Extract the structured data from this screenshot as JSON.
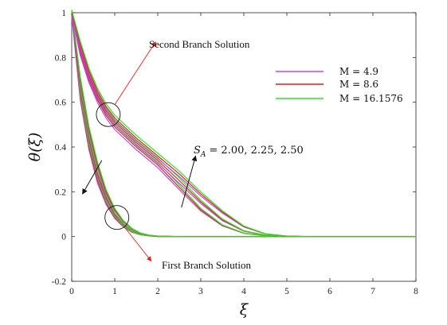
{
  "chart_data": {
    "type": "line",
    "title": "",
    "xlabel": "ξ",
    "ylabel": "θ(ξ)",
    "xlim": [
      0,
      8
    ],
    "ylim": [
      -0.2,
      1
    ],
    "xticks": [
      0,
      1,
      2,
      3,
      4,
      5,
      6,
      7,
      8
    ],
    "yticks": [
      -0.2,
      0,
      0.2,
      0.4,
      0.6,
      0.8,
      1
    ],
    "xtick_labels": [
      "0",
      "1",
      "2",
      "3",
      "4",
      "5",
      "6",
      "7",
      "8"
    ],
    "ytick_labels": [
      "-0.2",
      "0",
      "0.2",
      "0.4",
      "0.6",
      "0.8",
      "1"
    ],
    "grid": false,
    "legend_position": "top-right",
    "series": [
      {
        "name": "M = 4.9",
        "color": "#b34fe6"
      },
      {
        "name": "M = 8.6",
        "color": "#e81e1e"
      },
      {
        "name": "M = 16.1576",
        "color": "#26e61e"
      }
    ],
    "branches": {
      "first": {
        "label": "First Branch Solution",
        "by_SA": [
          {
            "SA": 2.0,
            "points": {
              "x": [
                0,
                0.2,
                0.4,
                0.6,
                0.8,
                1.0,
                1.2,
                1.4,
                1.6,
                1.8,
                2.0,
                2.5,
                8.0
              ],
              "y": [
                1.0,
                0.62,
                0.4,
                0.25,
                0.15,
                0.085,
                0.045,
                0.02,
                0.008,
                0.003,
                0.0,
                0.0,
                0.0
              ]
            }
          },
          {
            "SA": 2.25,
            "points": {
              "x": [
                0,
                0.2,
                0.4,
                0.6,
                0.8,
                1.0,
                1.2,
                1.4,
                1.6,
                1.8,
                2.0,
                2.5,
                8.0
              ],
              "y": [
                1.0,
                0.66,
                0.44,
                0.28,
                0.175,
                0.1,
                0.055,
                0.027,
                0.011,
                0.004,
                0.001,
                0.0,
                0.0
              ]
            }
          },
          {
            "SA": 2.5,
            "points": {
              "x": [
                0,
                0.2,
                0.4,
                0.6,
                0.8,
                1.0,
                1.2,
                1.4,
                1.6,
                1.8,
                2.0,
                2.5,
                8.0
              ],
              "y": [
                1.0,
                0.7,
                0.48,
                0.32,
                0.2,
                0.12,
                0.068,
                0.035,
                0.015,
                0.006,
                0.002,
                0.0,
                0.0
              ]
            }
          }
        ]
      },
      "second": {
        "label": "Second Branch Solution",
        "by_SA": [
          {
            "SA": 2.0,
            "points": {
              "x": [
                0,
                0.2,
                0.4,
                0.6,
                0.8,
                1.0,
                1.5,
                2.0,
                2.5,
                3.0,
                3.5,
                4.0,
                4.5,
                5.0,
                5.5,
                8.0
              ],
              "y": [
                1.0,
                0.82,
                0.7,
                0.61,
                0.54,
                0.49,
                0.4,
                0.32,
                0.22,
                0.12,
                0.05,
                0.015,
                0.003,
                0.0,
                0.0,
                0.0
              ]
            }
          },
          {
            "SA": 2.25,
            "points": {
              "x": [
                0,
                0.2,
                0.4,
                0.6,
                0.8,
                1.0,
                1.5,
                2.0,
                2.5,
                3.0,
                3.5,
                4.0,
                4.5,
                5.0,
                5.5,
                8.0
              ],
              "y": [
                1.0,
                0.84,
                0.72,
                0.63,
                0.56,
                0.51,
                0.42,
                0.34,
                0.25,
                0.155,
                0.075,
                0.025,
                0.006,
                0.001,
                0.0,
                0.0
              ]
            }
          },
          {
            "SA": 2.5,
            "points": {
              "x": [
                0,
                0.2,
                0.4,
                0.6,
                0.8,
                1.0,
                1.5,
                2.0,
                2.5,
                3.0,
                3.5,
                4.0,
                4.5,
                5.0,
                5.5,
                8.0
              ],
              "y": [
                1.0,
                0.86,
                0.74,
                0.65,
                0.58,
                0.53,
                0.44,
                0.36,
                0.28,
                0.19,
                0.11,
                0.045,
                0.012,
                0.002,
                0.0,
                0.0
              ]
            }
          }
        ]
      }
    },
    "annotations": [
      {
        "text": "Second Branch Solution",
        "marker": "circle",
        "at": [
          0.85,
          0.545
        ],
        "arrow_to": [
          1.95,
          0.87
        ],
        "arrow_color": "#e81e1e"
      },
      {
        "text": "First Branch Solution",
        "marker": "circle",
        "at": [
          1.05,
          0.085
        ],
        "arrow_to": [
          1.85,
          -0.11
        ],
        "arrow_color": "#e81e1e"
      },
      {
        "text": "S_A = 2.00, 2.25, 2.50",
        "arrow_from": [
          2.55,
          0.13
        ],
        "arrow_to": [
          2.88,
          0.36
        ],
        "arrow_color": "#111111"
      },
      {
        "text": "",
        "arrow_from": [
          0.7,
          0.34
        ],
        "arrow_to": [
          0.25,
          0.19
        ],
        "arrow_color": "#111111"
      }
    ],
    "sa_label": {
      "symbol": "S",
      "subscript": "A",
      "values": "= 2.00, 2.25, 2.50"
    }
  }
}
